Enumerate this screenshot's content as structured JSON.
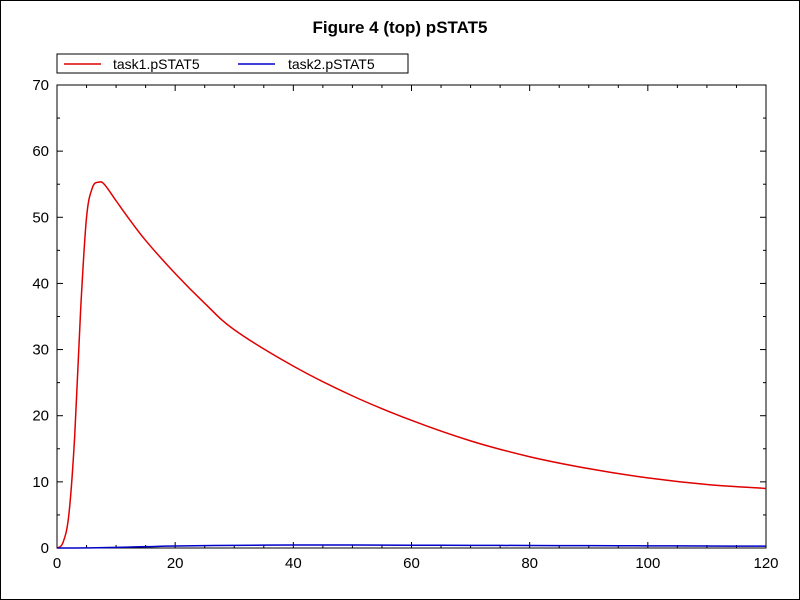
{
  "chart_data": {
    "type": "line",
    "title": "Figure 4 (top) pSTAT5",
    "xlabel": "",
    "ylabel": "",
    "xlim": [
      0,
      120
    ],
    "ylim": [
      0,
      70
    ],
    "x_ticks": [
      0,
      20,
      40,
      60,
      80,
      100,
      120
    ],
    "y_ticks": [
      0,
      10,
      20,
      30,
      40,
      50,
      60,
      70
    ],
    "grid": false,
    "legend": {
      "placement": "top-left",
      "entries": [
        "task1.pSTAT5",
        "task2.pSTAT5"
      ]
    },
    "series": [
      {
        "name": "task1.pSTAT5",
        "color": "#e00000",
        "x": [
          0,
          1,
          2,
          3,
          4,
          5,
          6,
          7,
          8,
          10,
          12,
          15,
          20,
          25,
          30,
          40,
          50,
          60,
          70,
          80,
          90,
          100,
          110,
          120
        ],
        "y": [
          0,
          0.8,
          5,
          17,
          36,
          50,
          54.5,
          55.3,
          55,
          52.5,
          50,
          46.5,
          41.5,
          37,
          33,
          27.5,
          23,
          19.3,
          16.2,
          13.8,
          12,
          10.6,
          9.6,
          9
        ]
      },
      {
        "name": "task2.pSTAT5",
        "color": "#0000c8",
        "x": [
          0,
          5,
          10,
          15,
          20,
          30,
          40,
          50,
          60,
          70,
          80,
          90,
          100,
          110,
          120
        ],
        "y": [
          0,
          0.02,
          0.1,
          0.2,
          0.3,
          0.4,
          0.45,
          0.45,
          0.42,
          0.4,
          0.38,
          0.35,
          0.33,
          0.3,
          0.28
        ]
      }
    ]
  }
}
